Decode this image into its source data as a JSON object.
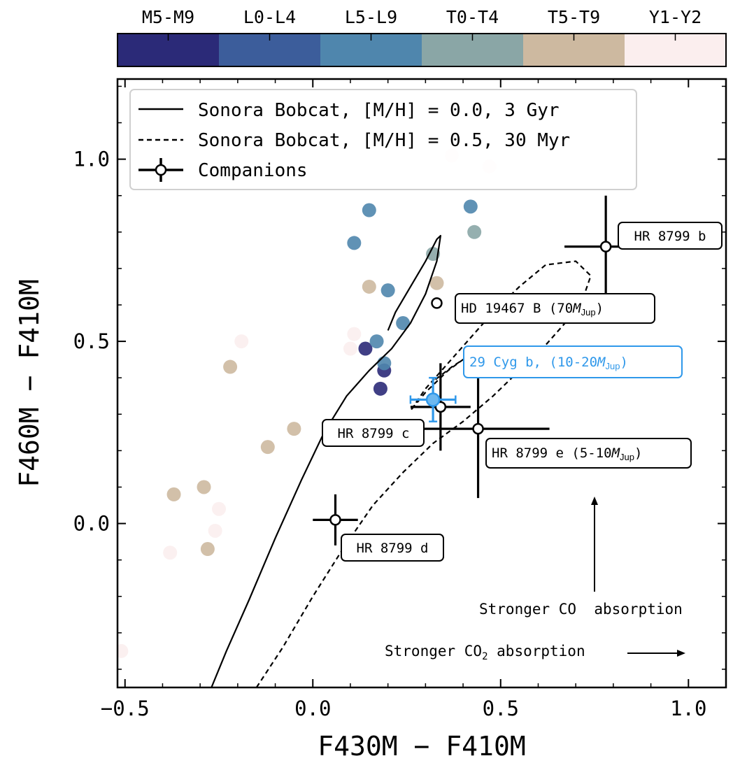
{
  "chart_data": {
    "type": "scatter",
    "xlabel": "F430M − F410M",
    "ylabel": "F460M − F410M",
    "xlim": [
      -0.52,
      1.1
    ],
    "ylim": [
      -0.45,
      1.22
    ],
    "xticks": [
      -0.5,
      0.0,
      0.5,
      1.0
    ],
    "xtick_labels": [
      "−0.5",
      "0.0",
      "0.5",
      "1.0"
    ],
    "yticks": [
      0.0,
      0.5,
      1.0
    ],
    "ytick_labels": [
      "0.0",
      "0.5",
      "1.0"
    ],
    "colorbar": {
      "position": "top",
      "categories": [
        "M5-M9",
        "L0-L4",
        "L5-L9",
        "T0-T4",
        "T5-T9",
        "Y1-Y2"
      ],
      "colors": [
        "#2b2a78",
        "#3c5d9b",
        "#4f86ad",
        "#8aa6a6",
        "#cdb9a0",
        "#fbeeee"
      ]
    },
    "legend": {
      "placement": "top-left",
      "entries": [
        {
          "label": "Sonora Bobcat, [M/H] = 0.0, 3 Gyr",
          "style": "solid"
        },
        {
          "label": "Sonora Bobcat, [M/H] = 0.5, 30 Myr",
          "style": "dashed"
        },
        {
          "label": "Companions",
          "style": "errorbar-marker"
        }
      ]
    },
    "field_dwarfs": [
      {
        "x": 0.18,
        "y": 0.37,
        "cls": 0
      },
      {
        "x": 0.19,
        "y": 0.42,
        "cls": 0
      },
      {
        "x": 0.14,
        "y": 0.48,
        "cls": 0
      },
      {
        "x": 0.11,
        "y": 0.77,
        "cls": 2
      },
      {
        "x": 0.15,
        "y": 0.86,
        "cls": 2
      },
      {
        "x": 0.2,
        "y": 0.64,
        "cls": 2
      },
      {
        "x": 0.17,
        "y": 0.5,
        "cls": 2
      },
      {
        "x": 0.19,
        "y": 0.44,
        "cls": 2
      },
      {
        "x": 0.24,
        "y": 0.55,
        "cls": 2
      },
      {
        "x": 0.42,
        "y": 0.87,
        "cls": 2
      },
      {
        "x": 0.43,
        "y": 0.8,
        "cls": 3
      },
      {
        "x": 0.32,
        "y": 0.74,
        "cls": 3
      },
      {
        "x": 0.15,
        "y": 0.65,
        "cls": 4
      },
      {
        "x": 0.33,
        "y": 0.66,
        "cls": 4
      },
      {
        "x": -0.22,
        "y": 0.43,
        "cls": 4
      },
      {
        "x": -0.05,
        "y": 0.26,
        "cls": 4
      },
      {
        "x": -0.12,
        "y": 0.21,
        "cls": 4
      },
      {
        "x": -0.37,
        "y": 0.08,
        "cls": 4
      },
      {
        "x": -0.29,
        "y": 0.1,
        "cls": 4
      },
      {
        "x": -0.28,
        "y": -0.07,
        "cls": 4
      },
      {
        "x": -0.19,
        "y": 0.5,
        "cls": 5
      },
      {
        "x": 0.11,
        "y": 0.52,
        "cls": 5
      },
      {
        "x": 0.1,
        "y": 0.48,
        "cls": 5
      },
      {
        "x": -0.38,
        "y": -0.08,
        "cls": 5
      },
      {
        "x": -0.26,
        "y": -0.02,
        "cls": 5
      },
      {
        "x": -0.25,
        "y": 0.04,
        "cls": 5
      },
      {
        "x": -0.51,
        "y": -0.35,
        "cls": 5
      },
      {
        "x": 0.37,
        "y": 1.01,
        "cls": 5
      },
      {
        "x": 0.47,
        "y": 0.98,
        "cls": 5
      }
    ],
    "series": [
      {
        "name": "Sonora Bobcat, [M/H] = 0.0, 3 Gyr",
        "style": "solid",
        "x": [
          -0.27,
          -0.23,
          -0.17,
          -0.1,
          -0.03,
          0.03,
          0.09,
          0.15,
          0.21,
          0.26,
          0.3,
          0.33,
          0.34,
          0.33,
          0.3,
          0.26,
          0.22,
          0.2
        ],
        "y": [
          -0.45,
          -0.35,
          -0.21,
          -0.04,
          0.12,
          0.25,
          0.35,
          0.42,
          0.48,
          0.55,
          0.63,
          0.72,
          0.79,
          0.78,
          0.72,
          0.65,
          0.58,
          0.53
        ]
      },
      {
        "name": "Sonora Bobcat, [M/H] = 0.5, 30 Myr",
        "style": "dashed",
        "x": [
          -0.15,
          -0.08,
          0.0,
          0.08,
          0.16,
          0.24,
          0.32,
          0.4,
          0.48,
          0.55,
          0.62,
          0.68,
          0.72,
          0.74,
          0.7,
          0.62,
          0.55,
          0.48,
          0.42,
          0.36,
          0.3,
          0.26,
          0.3,
          0.36,
          0.4,
          0.37,
          0.32
        ],
        "y": [
          -0.45,
          -0.34,
          -0.2,
          -0.07,
          0.05,
          0.14,
          0.22,
          0.28,
          0.35,
          0.42,
          0.49,
          0.56,
          0.62,
          0.68,
          0.72,
          0.71,
          0.65,
          0.58,
          0.51,
          0.44,
          0.37,
          0.31,
          0.36,
          0.42,
          0.45,
          0.43,
          0.39
        ]
      }
    ],
    "companions": [
      {
        "name": "HR 8799 b",
        "x": 0.78,
        "y": 0.76,
        "xerr": 0.11,
        "yerr": 0.14,
        "label_pos": "upper-right"
      },
      {
        "name": "HR 8799 c",
        "x": 0.34,
        "y": 0.32,
        "xerr": 0.08,
        "yerr": 0.12,
        "label_pos": "lower-left"
      },
      {
        "name": "HR 8799 d",
        "x": 0.06,
        "y": 0.01,
        "xerr": 0.06,
        "yerr": 0.07,
        "label_pos": "lower-right"
      },
      {
        "name": "HR 8799 e (5-10M_Jup)",
        "x": 0.44,
        "y": 0.26,
        "xerr": 0.19,
        "yerr": 0.19,
        "label_pos": "lower-right"
      },
      {
        "name": "HD 19467 B (70M_Jup)",
        "x": 0.33,
        "y": 0.605,
        "xerr": 0,
        "yerr": 0,
        "label_pos": "right"
      },
      {
        "name": "29 Cyg b, (10-20M_Jup)",
        "x": 0.32,
        "y": 0.34,
        "xerr": 0.06,
        "yerr": 0.06,
        "label_pos": "upper-right",
        "highlight": true,
        "color": "#2f98ea"
      }
    ],
    "annotations": {
      "co": "Stronger CO  absorption",
      "co2": "Stronger CO",
      "co2_sub": "2",
      "co2_suffix": " absorption"
    }
  },
  "labels": {
    "hr8799b": "HR 8799 b",
    "hr8799c": "HR 8799 c",
    "hr8799d": "HR 8799 d",
    "hr8799e_prefix": "HR 8799 e (5-10",
    "hd19467_prefix": "HD 19467 B (70",
    "cyg_prefix": "29 Cyg b, (10-20",
    "m": "M",
    "jup": "Jup",
    "close": ")"
  }
}
